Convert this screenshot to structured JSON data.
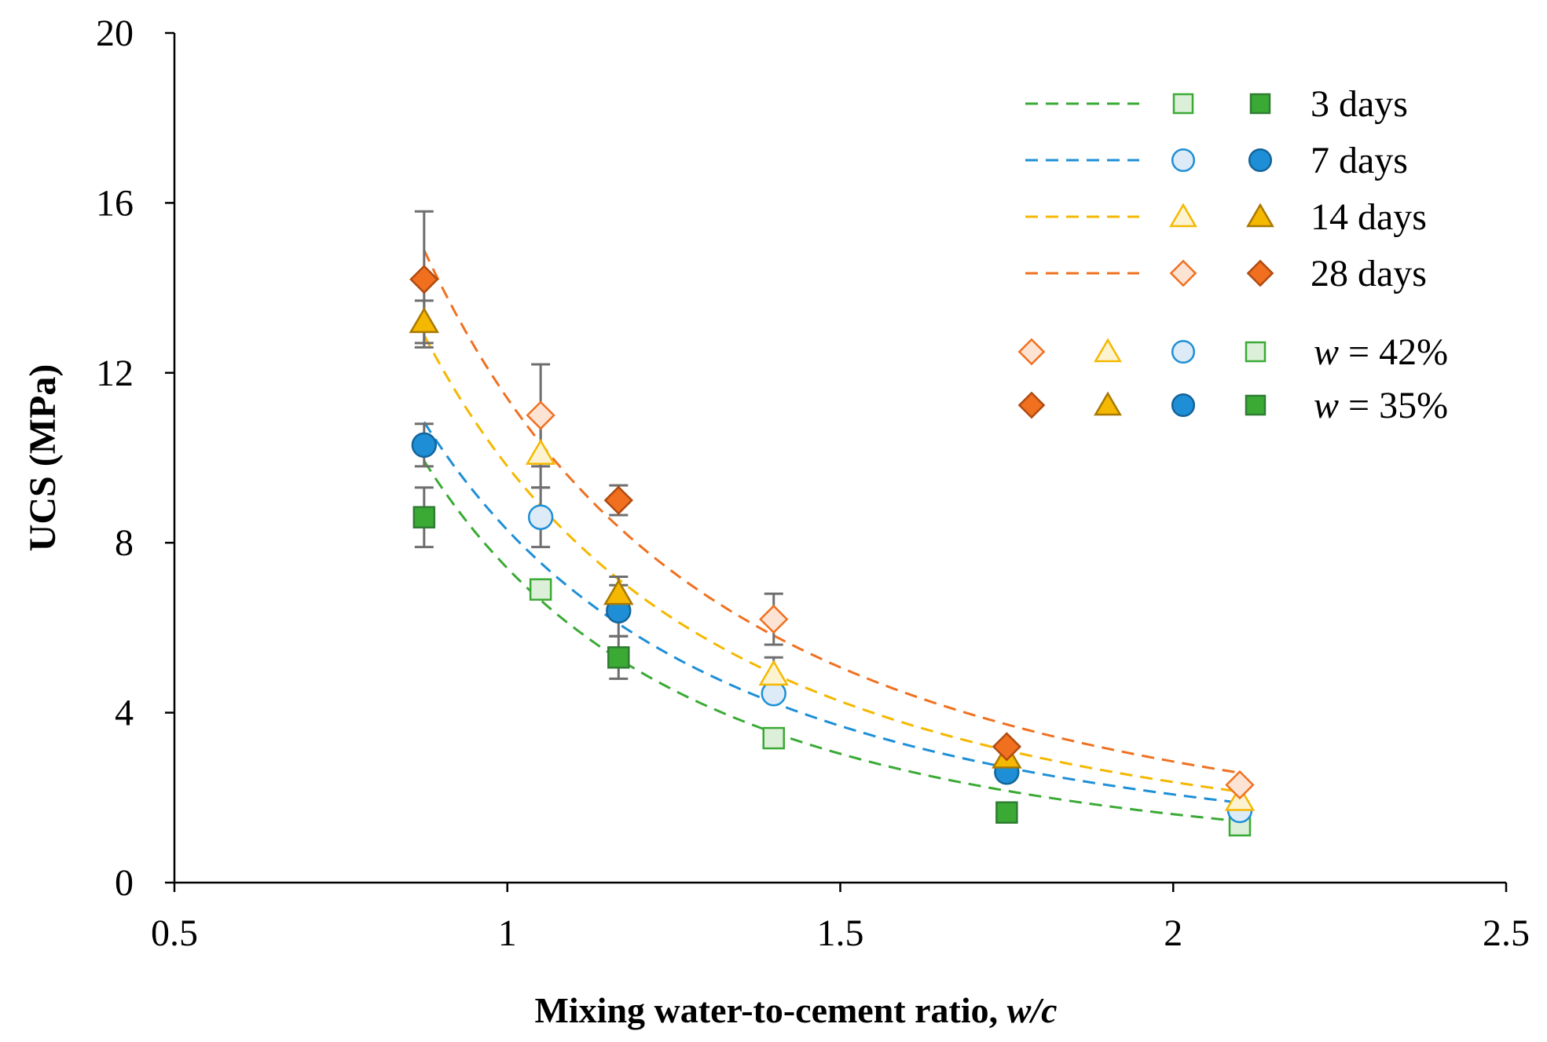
{
  "chart_data": {
    "type": "scatter",
    "title": "",
    "xlabel_main": "Mixing water-to-cement ratio, ",
    "xlabel_var": "w/c",
    "ylabel": "UCS (MPa)",
    "xlim": [
      0.5,
      2.5
    ],
    "ylim": [
      0,
      20
    ],
    "x_ticks": [
      {
        "value": 0.5,
        "label": "0.5"
      },
      {
        "value": 1,
        "label": "1"
      },
      {
        "value": 1.5,
        "label": "1.5"
      },
      {
        "value": 2,
        "label": "2"
      },
      {
        "value": 2.5,
        "label": "2.5"
      }
    ],
    "y_ticks": [
      {
        "value": 0,
        "label": "0"
      },
      {
        "value": 4,
        "label": "4"
      },
      {
        "value": 8,
        "label": "8"
      },
      {
        "value": 12,
        "label": "12"
      },
      {
        "value": 16,
        "label": "16"
      },
      {
        "value": 20,
        "label": "20"
      }
    ],
    "grid": false,
    "series": [
      {
        "id": "d3",
        "name": "3 days",
        "marker": "square",
        "color": "#3aaa35",
        "light_fill": "#dcefd8",
        "edge": "#2e7d32",
        "err_color": "#6e6e6e",
        "fit": {
          "a": 7.4,
          "b": -2.2
        },
        "points": [
          {
            "x": 0.875,
            "y": 8.6,
            "w": "35%",
            "err": 0.7
          },
          {
            "x": 1.05,
            "y": 6.9,
            "w": "42%",
            "err": 0
          },
          {
            "x": 1.167,
            "y": 5.3,
            "w": "35%",
            "err": 0.5
          },
          {
            "x": 1.4,
            "y": 3.4,
            "w": "42%",
            "err": 0
          },
          {
            "x": 1.75,
            "y": 1.65,
            "w": "35%",
            "err": 0
          },
          {
            "x": 2.1,
            "y": 1.35,
            "w": "42%",
            "err": 0
          }
        ]
      },
      {
        "id": "d7",
        "name": "7 days",
        "marker": "circle",
        "color": "#1e8fd6",
        "light_fill": "#dcebf7",
        "edge": "#14649a",
        "err_color": "#6e6e6e",
        "fit": {
          "a": 8.3,
          "b": -2.0
        },
        "points": [
          {
            "x": 0.875,
            "y": 10.3,
            "w": "35%",
            "err": 0.5
          },
          {
            "x": 1.05,
            "y": 8.6,
            "w": "42%",
            "err": 0.7
          },
          {
            "x": 1.167,
            "y": 6.4,
            "w": "35%",
            "err": 0.6
          },
          {
            "x": 1.4,
            "y": 4.45,
            "w": "42%",
            "err": 0
          },
          {
            "x": 1.75,
            "y": 2.6,
            "w": "35%",
            "err": 0
          },
          {
            "x": 2.1,
            "y": 1.7,
            "w": "42%",
            "err": 0
          }
        ]
      },
      {
        "id": "d14",
        "name": "14 days",
        "marker": "triangle",
        "color": "#f5b800",
        "light_fill": "#fdf3d0",
        "edge": "#a87800",
        "err_color": "#6e6e6e",
        "fit": {
          "a": 9.8,
          "b": -2.05
        },
        "points": [
          {
            "x": 0.875,
            "y": 13.2,
            "w": "35%",
            "err": 0.5
          },
          {
            "x": 1.05,
            "y": 10.1,
            "w": "42%",
            "err": 0.8
          },
          {
            "x": 1.167,
            "y": 6.8,
            "w": "35%",
            "err": 0.4
          },
          {
            "x": 1.4,
            "y": 4.9,
            "w": "42%",
            "err": 0.4
          },
          {
            "x": 1.75,
            "y": 2.95,
            "w": "35%",
            "err": 0
          },
          {
            "x": 2.1,
            "y": 1.95,
            "w": "42%",
            "err": 0
          }
        ]
      },
      {
        "id": "d28",
        "name": "28 days",
        "marker": "diamond",
        "color": "#f07020",
        "light_fill": "#fde3d3",
        "edge": "#b04a10",
        "err_color": "#6e6e6e",
        "fit": {
          "a": 11.4,
          "b": -2.0
        },
        "points": [
          {
            "x": 0.875,
            "y": 14.2,
            "w": "35%",
            "err": 1.6
          },
          {
            "x": 1.05,
            "y": 11.0,
            "w": "42%",
            "err": 1.2
          },
          {
            "x": 1.167,
            "y": 9.0,
            "w": "35%",
            "err": 0.35
          },
          {
            "x": 1.4,
            "y": 6.2,
            "w": "42%",
            "err": 0.6
          },
          {
            "x": 1.75,
            "y": 3.2,
            "w": "35%",
            "err": 0
          },
          {
            "x": 2.1,
            "y": 2.3,
            "w": "42%",
            "err": 0
          }
        ]
      }
    ],
    "legend": {
      "position": "top-right",
      "w_var": "w",
      "w_values": [
        {
          "text": " = 42%",
          "style": "open"
        },
        {
          "text": " = 35%",
          "style": "filled"
        }
      ]
    }
  }
}
